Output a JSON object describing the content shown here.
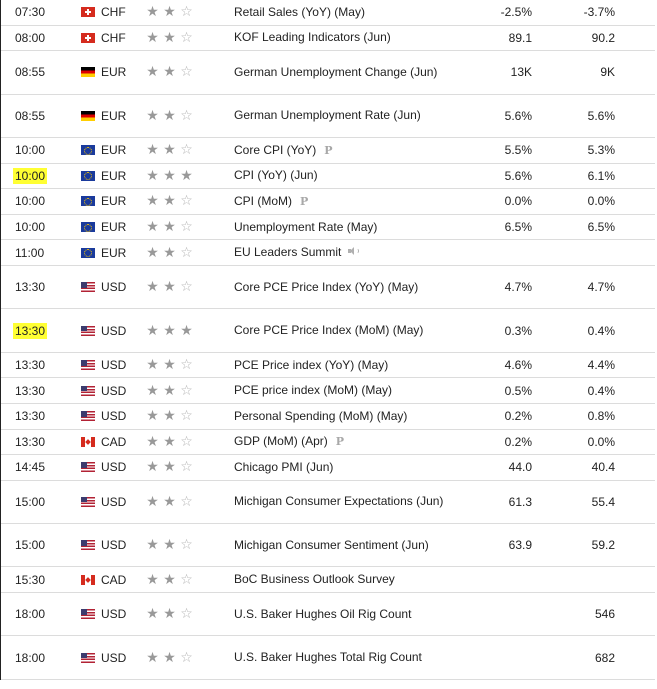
{
  "events": [
    {
      "time": "07:30",
      "highlight": false,
      "flag": "flag-ch",
      "currency": "CHF",
      "stars": 2,
      "event": "Retail Sales (YoY) (May)",
      "extra": "",
      "actual": "-2.5%",
      "previous": "-3.7%",
      "tall": false
    },
    {
      "time": "08:00",
      "highlight": false,
      "flag": "flag-ch",
      "currency": "CHF",
      "stars": 2,
      "event": "KOF Leading Indicators (Jun)",
      "extra": "",
      "actual": "89.1",
      "previous": "90.2",
      "tall": false
    },
    {
      "time": "08:55",
      "highlight": false,
      "flag": "flag-de",
      "currency": "EUR",
      "stars": 2,
      "event": "German Unemployment Change (Jun)",
      "extra": "",
      "actual": "13K",
      "previous": "9K",
      "tall": true
    },
    {
      "time": "08:55",
      "highlight": false,
      "flag": "flag-de",
      "currency": "EUR",
      "stars": 2,
      "event": "German Unemployment Rate (Jun)",
      "extra": "",
      "actual": "5.6%",
      "previous": "5.6%",
      "tall": true
    },
    {
      "time": "10:00",
      "highlight": false,
      "flag": "flag-eu",
      "currency": "EUR",
      "stars": 2,
      "event": "Core CPI (YoY)",
      "extra": "P",
      "actual": "5.5%",
      "previous": "5.3%",
      "tall": false
    },
    {
      "time": "10:00",
      "highlight": true,
      "flag": "flag-eu",
      "currency": "EUR",
      "stars": 3,
      "event": "CPI (YoY) (Jun)",
      "extra": "",
      "actual": "5.6%",
      "previous": "6.1%",
      "tall": false
    },
    {
      "time": "10:00",
      "highlight": false,
      "flag": "flag-eu",
      "currency": "EUR",
      "stars": 2,
      "event": "CPI (MoM)",
      "extra": "P",
      "actual": "0.0%",
      "previous": "0.0%",
      "tall": false
    },
    {
      "time": "10:00",
      "highlight": false,
      "flag": "flag-eu",
      "currency": "EUR",
      "stars": 2,
      "event": "Unemployment Rate (May)",
      "extra": "",
      "actual": "6.5%",
      "previous": "6.5%",
      "tall": false
    },
    {
      "time": "11:00",
      "highlight": false,
      "flag": "flag-eu",
      "currency": "EUR",
      "stars": 2,
      "event": "EU Leaders Summit",
      "extra": "speaker",
      "actual": "",
      "previous": "",
      "tall": false
    },
    {
      "time": "13:30",
      "highlight": false,
      "flag": "flag-us",
      "currency": "USD",
      "stars": 2,
      "event": "Core PCE Price Index (YoY) (May)",
      "extra": "",
      "actual": "4.7%",
      "previous": "4.7%",
      "tall": true
    },
    {
      "time": "13:30",
      "highlight": true,
      "flag": "flag-us",
      "currency": "USD",
      "stars": 3,
      "event": "Core PCE Price Index (MoM) (May)",
      "extra": "",
      "actual": "0.3%",
      "previous": "0.4%",
      "tall": true
    },
    {
      "time": "13:30",
      "highlight": false,
      "flag": "flag-us",
      "currency": "USD",
      "stars": 2,
      "event": "PCE Price index (YoY) (May)",
      "extra": "",
      "actual": "4.6%",
      "previous": "4.4%",
      "tall": false
    },
    {
      "time": "13:30",
      "highlight": false,
      "flag": "flag-us",
      "currency": "USD",
      "stars": 2,
      "event": "PCE price index (MoM) (May)",
      "extra": "",
      "actual": "0.5%",
      "previous": "0.4%",
      "tall": false
    },
    {
      "time": "13:30",
      "highlight": false,
      "flag": "flag-us",
      "currency": "USD",
      "stars": 2,
      "event": "Personal Spending (MoM) (May)",
      "extra": "",
      "actual": "0.2%",
      "previous": "0.8%",
      "tall": false
    },
    {
      "time": "13:30",
      "highlight": false,
      "flag": "flag-ca",
      "currency": "CAD",
      "stars": 2,
      "event": "GDP (MoM) (Apr)",
      "extra": "P",
      "actual": "0.2%",
      "previous": "0.0%",
      "tall": false
    },
    {
      "time": "14:45",
      "highlight": false,
      "flag": "flag-us",
      "currency": "USD",
      "stars": 2,
      "event": "Chicago PMI (Jun)",
      "extra": "",
      "actual": "44.0",
      "previous": "40.4",
      "tall": false
    },
    {
      "time": "15:00",
      "highlight": false,
      "flag": "flag-us",
      "currency": "USD",
      "stars": 2,
      "event": "Michigan Consumer Expectations (Jun)",
      "extra": "",
      "actual": "61.3",
      "previous": "55.4",
      "tall": true
    },
    {
      "time": "15:00",
      "highlight": false,
      "flag": "flag-us",
      "currency": "USD",
      "stars": 2,
      "event": "Michigan Consumer Sentiment (Jun)",
      "extra": "",
      "actual": "63.9",
      "previous": "59.2",
      "tall": true
    },
    {
      "time": "15:30",
      "highlight": false,
      "flag": "flag-ca",
      "currency": "CAD",
      "stars": 2,
      "event": "BoC Business Outlook Survey",
      "extra": "",
      "actual": "",
      "previous": "",
      "tall": false
    },
    {
      "time": "18:00",
      "highlight": false,
      "flag": "flag-us",
      "currency": "USD",
      "stars": 2,
      "event": "U.S. Baker Hughes Oil Rig Count",
      "extra": "",
      "actual": "",
      "previous": "546",
      "tall": true
    },
    {
      "time": "18:00",
      "highlight": false,
      "flag": "flag-us",
      "currency": "USD",
      "stars": 2,
      "event": "U.S. Baker Hughes Total Rig Count",
      "extra": "",
      "actual": "",
      "previous": "682",
      "tall": true
    }
  ]
}
